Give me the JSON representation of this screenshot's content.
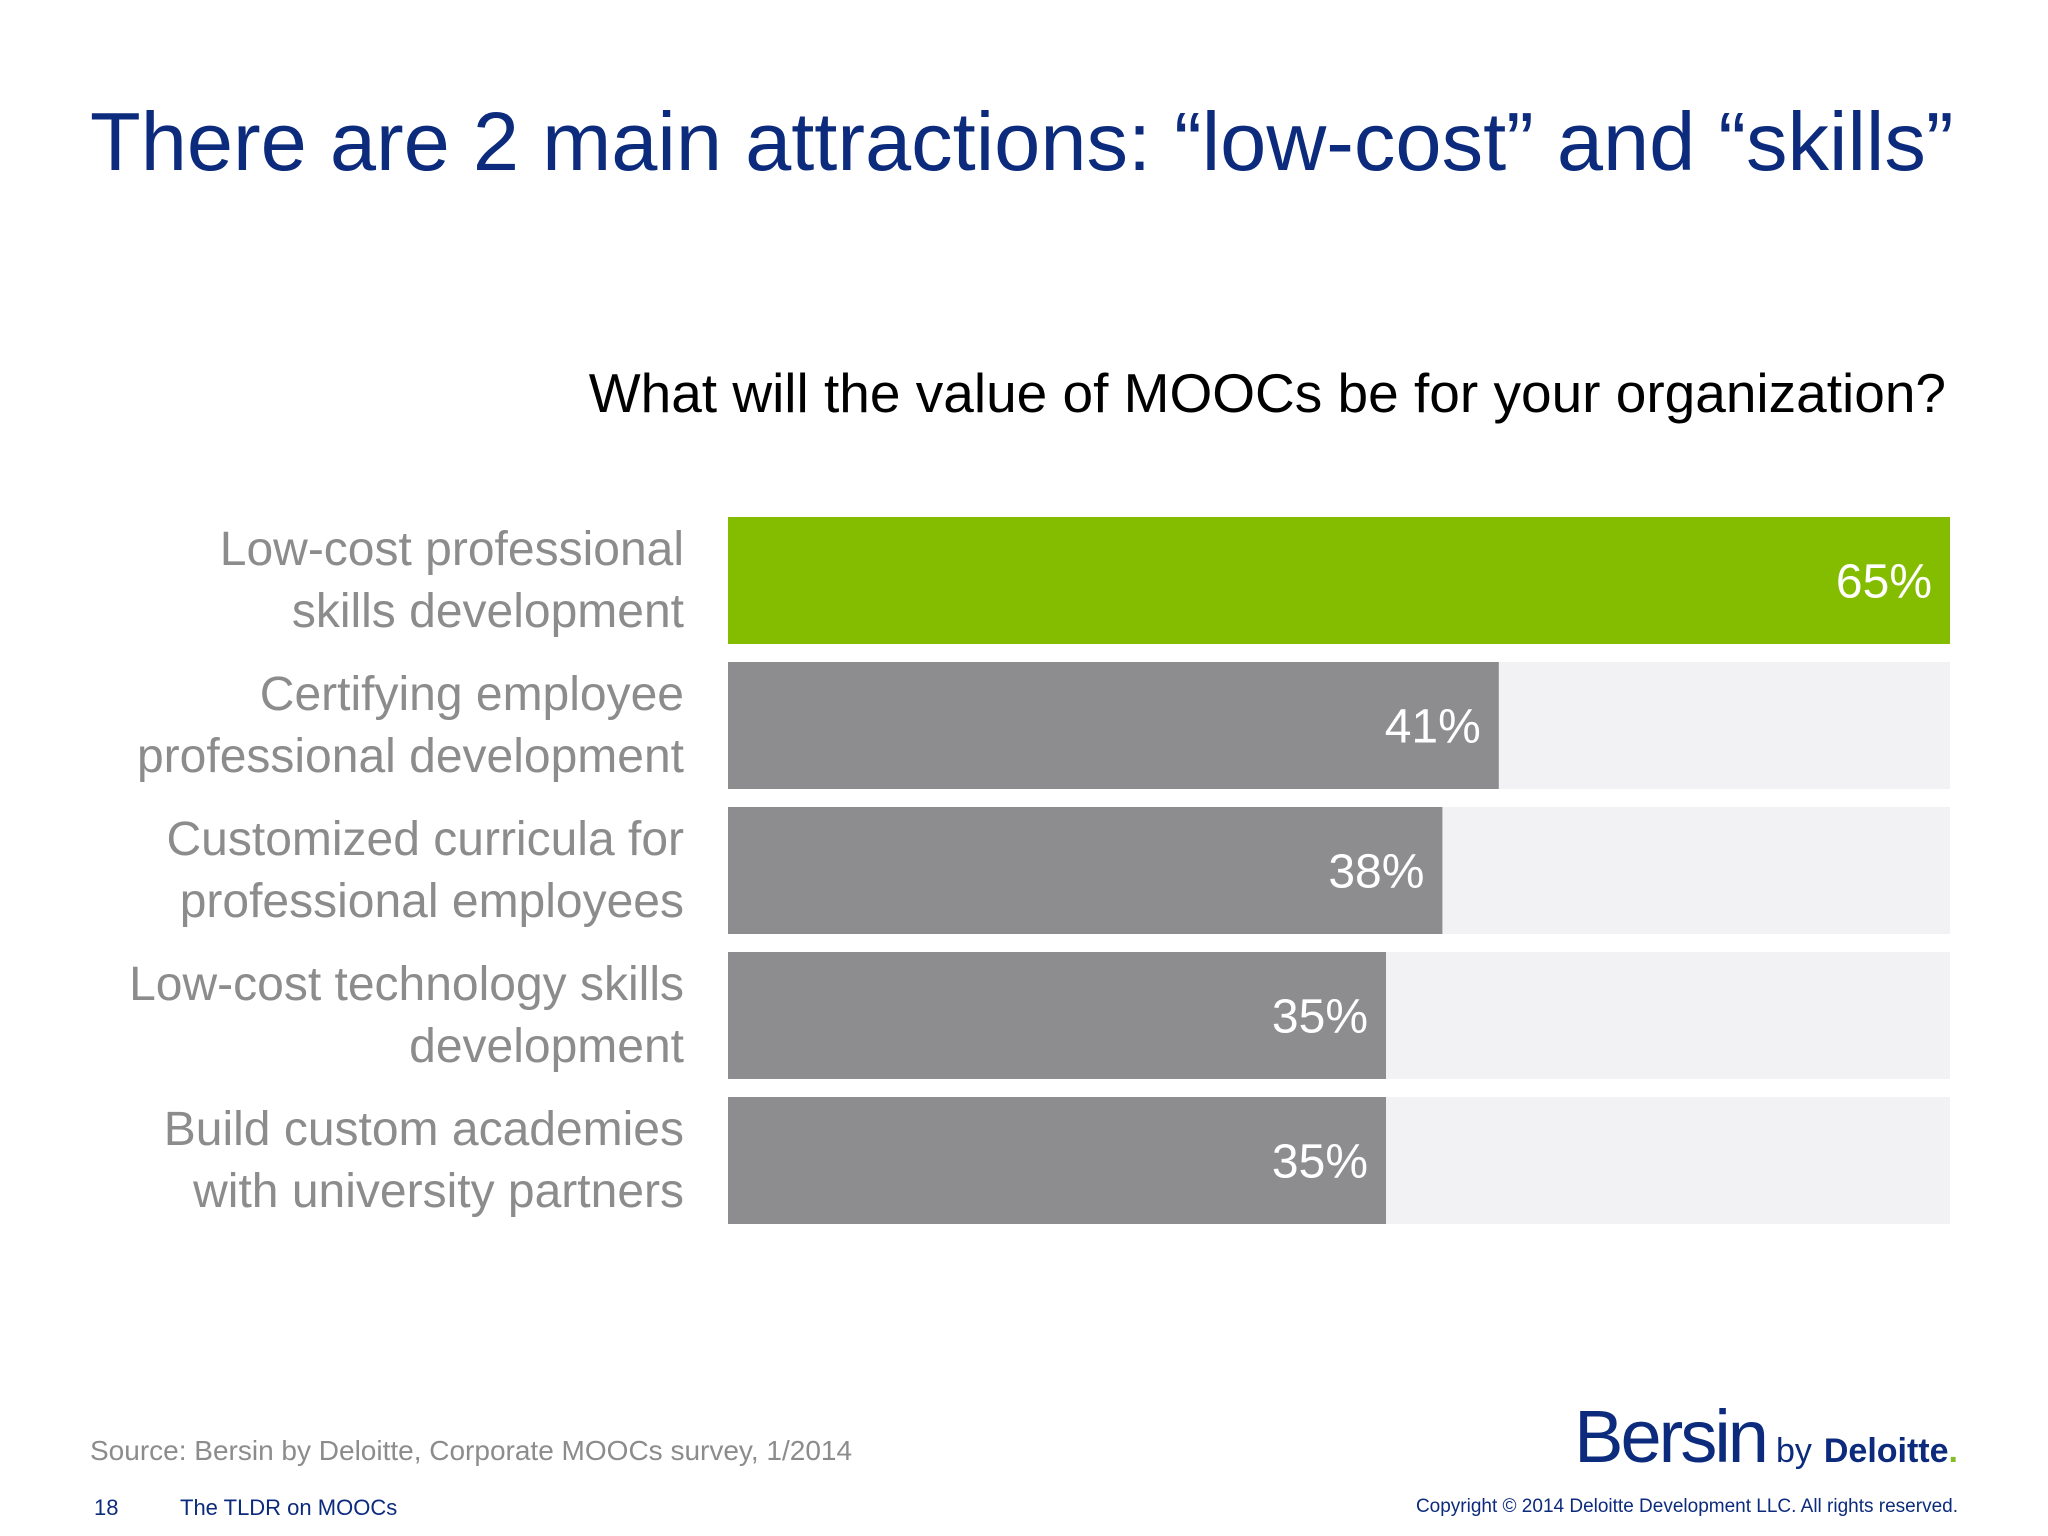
{
  "slide": {
    "title": "There are 2 main attractions: “low-cost” and “skills”",
    "question": "What will the value of MOOCs be for your organization?",
    "source": "Source: Bersin by Deloitte, Corporate MOOCs survey, 1/2014",
    "page_number": "18",
    "deck_title": "The TLDR on MOOCs",
    "copyright": "Copyright © 2014 Deloitte Development LLC. All rights reserved."
  },
  "logo": {
    "bersin": "Bersin",
    "by": "by",
    "deloitte": "Deloitte",
    "dot": "."
  },
  "colors": {
    "title": "#0c2b7d",
    "highlight_bar": "#84bd00",
    "bar": "#8d8c8f",
    "track": "#f2f1f3",
    "category_label": "#8c8c8c",
    "value_label": "#ffffff"
  },
  "chart_data": {
    "type": "bar",
    "orientation": "horizontal",
    "categories": [
      [
        "Low-cost professional",
        "skills development"
      ],
      [
        "Certifying employee",
        "professional development"
      ],
      [
        "Customized curricula for",
        "professional employees"
      ],
      [
        "Low-cost technology skills",
        "development"
      ],
      [
        "Build custom academies",
        "with university partners"
      ]
    ],
    "values": [
      65,
      41,
      38,
      35,
      35
    ],
    "value_labels": [
      "65%",
      "41%",
      "38%",
      "35%",
      "35%"
    ],
    "highlighted_index": 0,
    "xlim": [
      0,
      65
    ],
    "unit": "%",
    "grid": false,
    "legend": "none"
  }
}
